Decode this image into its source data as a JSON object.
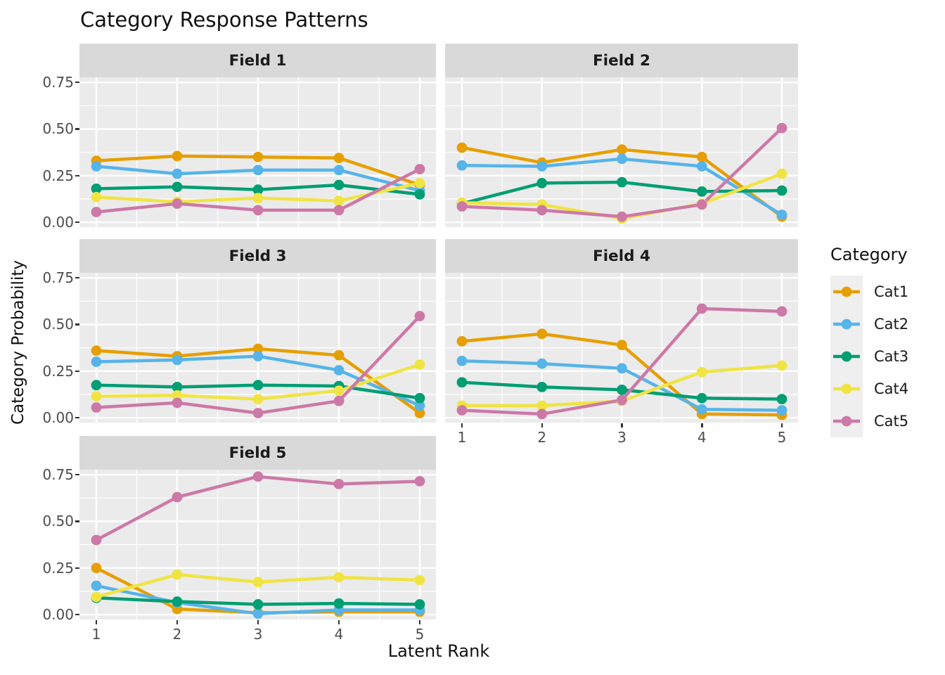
{
  "title": "Category Response Patterns",
  "axes": {
    "x_title": "Latent Rank",
    "y_title": "Category Probability",
    "y_tick_labels": [
      "0.75",
      "0.50",
      "0.25",
      "0.00"
    ],
    "x_tick_labels": [
      "1",
      "2",
      "3",
      "4",
      "5"
    ]
  },
  "legend": {
    "title": "Category",
    "entries": [
      {
        "label": "Cat1",
        "color": "#E69F00"
      },
      {
        "label": "Cat2",
        "color": "#56B4E9"
      },
      {
        "label": "Cat3",
        "color": "#009E73"
      },
      {
        "label": "Cat4",
        "color": "#F0E442"
      },
      {
        "label": "Cat5",
        "color": "#CC79A7"
      }
    ]
  },
  "style": {
    "panel_bg": "#EBEBEB",
    "strip_bg": "#D9D9D9",
    "grid_color": "#FFFFFF",
    "tick_color": "#333333",
    "tick_label_color": "#4D4D4D",
    "legend_key_bg": "#EFEFEF"
  },
  "chart_data": {
    "type": "line",
    "title": "Category Response Patterns",
    "xlabel": "Latent Rank",
    "ylabel": "Category Probability",
    "x": [
      1,
      2,
      3,
      4,
      5
    ],
    "y_ticks": [
      0.75,
      0.5,
      0.25,
      0.0
    ],
    "ylim": [
      0,
      0.78
    ],
    "grid": true,
    "legend_position": "right",
    "legend_title": "Category",
    "facets": [
      {
        "label": "Field 1",
        "series": [
          {
            "name": "Cat1",
            "values": [
              0.33,
              0.355,
              0.35,
              0.345,
              0.2
            ]
          },
          {
            "name": "Cat2",
            "values": [
              0.3,
              0.26,
              0.28,
              0.28,
              0.17
            ]
          },
          {
            "name": "Cat3",
            "values": [
              0.18,
              0.19,
              0.175,
              0.2,
              0.15
            ]
          },
          {
            "name": "Cat4",
            "values": [
              0.135,
              0.11,
              0.13,
              0.115,
              0.21
            ]
          },
          {
            "name": "Cat5",
            "values": [
              0.055,
              0.1,
              0.065,
              0.065,
              0.285
            ]
          }
        ]
      },
      {
        "label": "Field 2",
        "series": [
          {
            "name": "Cat1",
            "values": [
              0.4,
              0.32,
              0.39,
              0.35,
              0.03
            ]
          },
          {
            "name": "Cat2",
            "values": [
              0.305,
              0.3,
              0.34,
              0.3,
              0.04
            ]
          },
          {
            "name": "Cat3",
            "values": [
              0.1,
              0.21,
              0.215,
              0.165,
              0.17
            ]
          },
          {
            "name": "Cat4",
            "values": [
              0.105,
              0.095,
              0.02,
              0.1,
              0.26
            ]
          },
          {
            "name": "Cat5",
            "values": [
              0.085,
              0.065,
              0.03,
              0.095,
              0.505
            ]
          }
        ]
      },
      {
        "label": "Field 3",
        "series": [
          {
            "name": "Cat1",
            "values": [
              0.36,
              0.33,
              0.37,
              0.335,
              0.025
            ]
          },
          {
            "name": "Cat2",
            "values": [
              0.3,
              0.31,
              0.33,
              0.255,
              0.065
            ]
          },
          {
            "name": "Cat3",
            "values": [
              0.175,
              0.165,
              0.175,
              0.17,
              0.105
            ]
          },
          {
            "name": "Cat4",
            "values": [
              0.115,
              0.12,
              0.1,
              0.145,
              0.285
            ]
          },
          {
            "name": "Cat5",
            "values": [
              0.055,
              0.08,
              0.025,
              0.09,
              0.545
            ]
          }
        ]
      },
      {
        "label": "Field 4",
        "series": [
          {
            "name": "Cat1",
            "values": [
              0.41,
              0.45,
              0.39,
              0.02,
              0.015
            ]
          },
          {
            "name": "Cat2",
            "values": [
              0.305,
              0.29,
              0.265,
              0.045,
              0.04
            ]
          },
          {
            "name": "Cat3",
            "values": [
              0.19,
              0.165,
              0.15,
              0.105,
              0.1
            ]
          },
          {
            "name": "Cat4",
            "values": [
              0.065,
              0.065,
              0.09,
              0.245,
              0.28
            ]
          },
          {
            "name": "Cat5",
            "values": [
              0.04,
              0.02,
              0.095,
              0.585,
              0.57
            ]
          }
        ]
      },
      {
        "label": "Field 5",
        "series": [
          {
            "name": "Cat1",
            "values": [
              0.25,
              0.03,
              0.01,
              0.015,
              0.015
            ]
          },
          {
            "name": "Cat2",
            "values": [
              0.155,
              0.065,
              0.005,
              0.025,
              0.025
            ]
          },
          {
            "name": "Cat3",
            "values": [
              0.09,
              0.07,
              0.055,
              0.06,
              0.055
            ]
          },
          {
            "name": "Cat4",
            "values": [
              0.095,
              0.215,
              0.175,
              0.2,
              0.185
            ]
          },
          {
            "name": "Cat5",
            "values": [
              0.4,
              0.63,
              0.74,
              0.7,
              0.715
            ]
          }
        ]
      }
    ]
  }
}
